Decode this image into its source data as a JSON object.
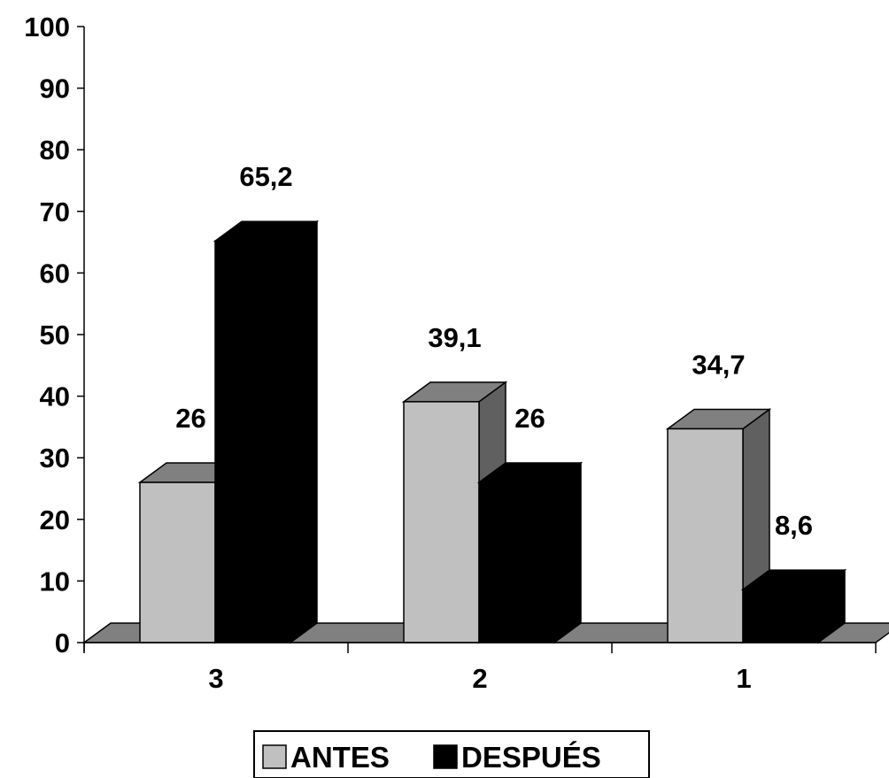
{
  "chart_data": {
    "type": "bar",
    "categories": [
      "3",
      "2",
      "1"
    ],
    "series": [
      {
        "name": "ANTES",
        "values": [
          26,
          39.1,
          34.7
        ],
        "labels": [
          "26",
          "39,1",
          "34,7"
        ],
        "color": "#C0C0C0",
        "side_color": "#606060"
      },
      {
        "name": "DESPUÉS",
        "values": [
          65.2,
          26,
          8.6
        ],
        "labels": [
          "65,2",
          "26",
          "8,6"
        ],
        "color": "#000000",
        "side_color": "#000000"
      }
    ],
    "ylim": [
      0,
      100
    ],
    "yticks": [
      "0",
      "10",
      "20",
      "30",
      "40",
      "50",
      "60",
      "70",
      "80",
      "90",
      "100"
    ],
    "floor_color": "#808080",
    "grid": false,
    "legend_position": "bottom",
    "title": "",
    "xlabel": "",
    "ylabel": ""
  }
}
